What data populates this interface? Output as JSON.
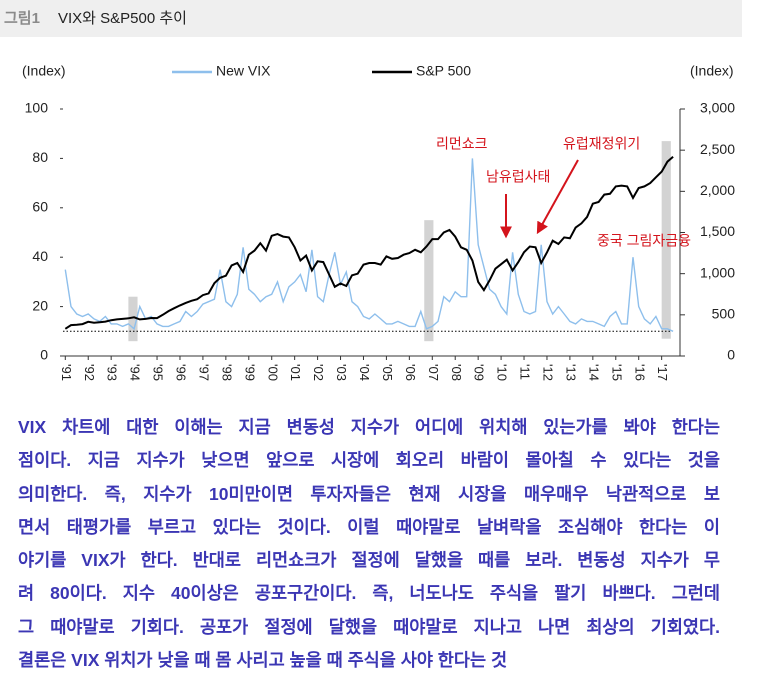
{
  "chart_data": {
    "type": "line",
    "figure_label": "그림1",
    "title": "VIX와 S&P500 추이",
    "ylabel": "(Index)",
    "y2label": "(Index)",
    "x": [
      1991,
      1991.25,
      1991.5,
      1991.75,
      1992,
      1992.25,
      1992.5,
      1992.75,
      1993,
      1993.25,
      1993.5,
      1993.75,
      1994,
      1994.25,
      1994.5,
      1994.75,
      1995,
      1995.25,
      1995.5,
      1995.75,
      1996,
      1996.25,
      1996.5,
      1996.75,
      1997,
      1997.25,
      1997.5,
      1997.75,
      1998,
      1998.25,
      1998.5,
      1998.75,
      1999,
      1999.25,
      1999.5,
      1999.75,
      2000,
      2000.25,
      2000.5,
      2000.75,
      2001,
      2001.25,
      2001.5,
      2001.75,
      2002,
      2002.25,
      2002.5,
      2002.75,
      2003,
      2003.25,
      2003.5,
      2003.75,
      2004,
      2004.25,
      2004.5,
      2004.75,
      2005,
      2005.25,
      2005.5,
      2005.75,
      2006,
      2006.25,
      2006.5,
      2006.75,
      2007,
      2007.25,
      2007.5,
      2007.75,
      2008,
      2008.25,
      2008.5,
      2008.75,
      2009,
      2009.25,
      2009.5,
      2009.75,
      2010,
      2010.25,
      2010.5,
      2010.75,
      2011,
      2011.25,
      2011.5,
      2011.75,
      2012,
      2012.25,
      2012.5,
      2012.75,
      2013,
      2013.25,
      2013.5,
      2013.75,
      2014,
      2014.25,
      2014.5,
      2014.75,
      2015,
      2015.25,
      2015.5,
      2015.75,
      2016,
      2016.25,
      2016.5,
      2016.75,
      2017,
      2017.25,
      2017.5
    ],
    "series": [
      {
        "name": "New VIX",
        "color": "#8ebfec",
        "axis": "y",
        "values": [
          35,
          20,
          17,
          16,
          17,
          15,
          14,
          16,
          13,
          13,
          12,
          13,
          11,
          20,
          15,
          16,
          13,
          12,
          12,
          13,
          14,
          18,
          16,
          18,
          21,
          22,
          23,
          35,
          22,
          20,
          25,
          44,
          27,
          25,
          22,
          24,
          25,
          30,
          22,
          28,
          30,
          33,
          26,
          43,
          24,
          22,
          33,
          42,
          29,
          34,
          22,
          20,
          16,
          15,
          17,
          15,
          13,
          13,
          14,
          13,
          12,
          12,
          18,
          11,
          12,
          14,
          24,
          22,
          26,
          24,
          24,
          80,
          45,
          36,
          27,
          25,
          20,
          17,
          42,
          25,
          18,
          17,
          18,
          45,
          22,
          17,
          20,
          17,
          14,
          13,
          15,
          14,
          14,
          13,
          12,
          16,
          18,
          13,
          13,
          40,
          20,
          15,
          13,
          16,
          11,
          11,
          10
        ]
      },
      {
        "name": "S&P 500",
        "color": "#000000",
        "axis": "y2",
        "values": [
          330,
          375,
          380,
          388,
          415,
          405,
          410,
          418,
          435,
          445,
          450,
          458,
          470,
          445,
          450,
          462,
          460,
          500,
          545,
          580,
          615,
          645,
          670,
          690,
          740,
          760,
          885,
          950,
          975,
          1100,
          1130,
          1020,
          1230,
          1280,
          1370,
          1280,
          1460,
          1480,
          1450,
          1440,
          1320,
          1160,
          1220,
          1040,
          1150,
          1140,
          990,
          840,
          880,
          850,
          980,
          1000,
          1110,
          1130,
          1130,
          1110,
          1210,
          1180,
          1190,
          1230,
          1250,
          1290,
          1260,
          1330,
          1420,
          1420,
          1500,
          1530,
          1450,
          1320,
          1290,
          1160,
          900,
          800,
          920,
          1060,
          1115,
          1170,
          1040,
          1140,
          1260,
          1330,
          1320,
          1130,
          1260,
          1400,
          1360,
          1440,
          1430,
          1560,
          1610,
          1690,
          1850,
          1870,
          1960,
          1970,
          2060,
          2070,
          2060,
          1920,
          2040,
          2060,
          2100,
          2170,
          2240,
          2360,
          2420
        ]
      }
    ],
    "xlim": [
      1990.9,
      2017.8
    ],
    "xticks": [
      {
        "value": 1991,
        "label": "'91"
      },
      {
        "value": 1992,
        "label": "'92"
      },
      {
        "value": 1993,
        "label": "'93"
      },
      {
        "value": 1994,
        "label": "'94"
      },
      {
        "value": 1995,
        "label": "'95"
      },
      {
        "value": 1996,
        "label": "'96"
      },
      {
        "value": 1997,
        "label": "'97"
      },
      {
        "value": 1998,
        "label": "'98"
      },
      {
        "value": 1999,
        "label": "'99"
      },
      {
        "value": 2000,
        "label": "'00"
      },
      {
        "value": 2001,
        "label": "'01"
      },
      {
        "value": 2002,
        "label": "'02"
      },
      {
        "value": 2003,
        "label": "'03"
      },
      {
        "value": 2004,
        "label": "'04"
      },
      {
        "value": 2005,
        "label": "'05"
      },
      {
        "value": 2006,
        "label": "'06"
      },
      {
        "value": 2007,
        "label": "'07"
      },
      {
        "value": 2008,
        "label": "'08"
      },
      {
        "value": 2009,
        "label": "'09"
      },
      {
        "value": 2010,
        "label": "'10"
      },
      {
        "value": 2011,
        "label": "'11"
      },
      {
        "value": 2012,
        "label": "'12"
      },
      {
        "value": 2013,
        "label": "'13"
      },
      {
        "value": 2014,
        "label": "'14"
      },
      {
        "value": 2015,
        "label": "'15"
      },
      {
        "value": 2016,
        "label": "'16"
      },
      {
        "value": 2017,
        "label": "'17"
      }
    ],
    "ylim": [
      0,
      100
    ],
    "yticks": [
      0,
      20,
      40,
      60,
      80,
      100
    ],
    "y2lim": [
      0,
      3000
    ],
    "y2ticks": [
      0,
      500,
      {
        "value": 1000,
        "label": "1,000"
      },
      {
        "value": 1500,
        "label": "1,500"
      },
      {
        "value": 2000,
        "label": "2,000"
      },
      {
        "value": 2500,
        "label": "2,500"
      },
      {
        "value": 3000,
        "label": "3,000"
      }
    ],
    "reference_line": 10,
    "highlights": [
      {
        "x": [
          1993.75,
          1994.15
        ],
        "y": [
          6,
          24
        ]
      },
      {
        "x": [
          2006.65,
          2007.05
        ],
        "y": [
          6,
          55
        ]
      },
      {
        "x": [
          2017.0,
          2017.4
        ],
        "y": [
          7,
          87
        ]
      }
    ],
    "annotations": [
      {
        "text": "리먼쇼크"
      },
      {
        "text": "남유럽사태"
      },
      {
        "text": "유럽재정위기"
      },
      {
        "text": "중국 그림자금융"
      }
    ],
    "legend": "top"
  },
  "paragraph": [
    "VIX 차트에 대한 이해는 지금 변동성 지수가 어디에 위치해 있는가를 봐야 한다는",
    "점이다. 지금 지수가 낮으면 앞으로 시장에 회오리 바람이 몰아칠 수 있다는 것을",
    "의미한다. 즉, 지수가 10미만이면 투자자들은 현재 시장을 매우매우 낙관적으로 보",
    "면서 태평가를 부르고 있다는 것이다. 이럴 때야말로 날벼락을 조심해야 한다는 이",
    "야기를 VIX가 한다. 반대로 리먼쇼크가 절정에 달했을 때를 보라. 변동성 지수가 무",
    "려 80이다. 지수 40이상은 공포구간이다. 즉, 너도나도 주식을 팔기 바쁘다. 그런데",
    "그 때야말로 기회다. 공포가 절정에 달했을 때야말로 지나고 나면 최상의 기회였다.",
    "결론은 VIX 위치가 낮을 때 몸 사리고 높을 때 주식을 사야 한다는 것"
  ]
}
